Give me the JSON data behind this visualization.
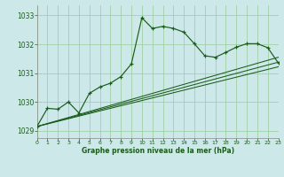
{
  "title": "Graphe pression niveau de la mer (hPa)",
  "bg_color": "#cce8e8",
  "grid_color": "#99cc99",
  "line_color": "#1a5c1a",
  "xlim": [
    0,
    23
  ],
  "ylim": [
    1028.75,
    1033.35
  ],
  "xtick_vals": [
    0,
    1,
    2,
    3,
    4,
    5,
    6,
    7,
    8,
    9,
    10,
    11,
    12,
    13,
    14,
    15,
    16,
    17,
    18,
    19,
    20,
    21,
    22,
    23
  ],
  "ytick_vals": [
    1029,
    1030,
    1031,
    1032,
    1033
  ],
  "main_x": [
    0,
    1,
    2,
    3,
    4,
    5,
    6,
    7,
    8,
    9,
    10,
    11,
    12,
    13,
    14,
    15,
    16,
    17,
    18,
    19,
    20,
    21,
    22,
    23
  ],
  "main_y": [
    1029.15,
    1029.78,
    1029.75,
    1030.0,
    1029.62,
    1030.3,
    1030.52,
    1030.65,
    1030.88,
    1031.32,
    1032.92,
    1032.55,
    1032.62,
    1032.55,
    1032.42,
    1032.02,
    1031.6,
    1031.55,
    1031.72,
    1031.9,
    1032.02,
    1032.02,
    1031.88,
    1031.35
  ],
  "trend_lines": [
    {
      "x0": 0,
      "y0": 1029.15,
      "x1": 23,
      "y1": 1031.55
    },
    {
      "x0": 0,
      "y0": 1029.15,
      "x1": 23,
      "y1": 1031.38
    },
    {
      "x0": 0,
      "y0": 1029.15,
      "x1": 23,
      "y1": 1031.22
    }
  ]
}
